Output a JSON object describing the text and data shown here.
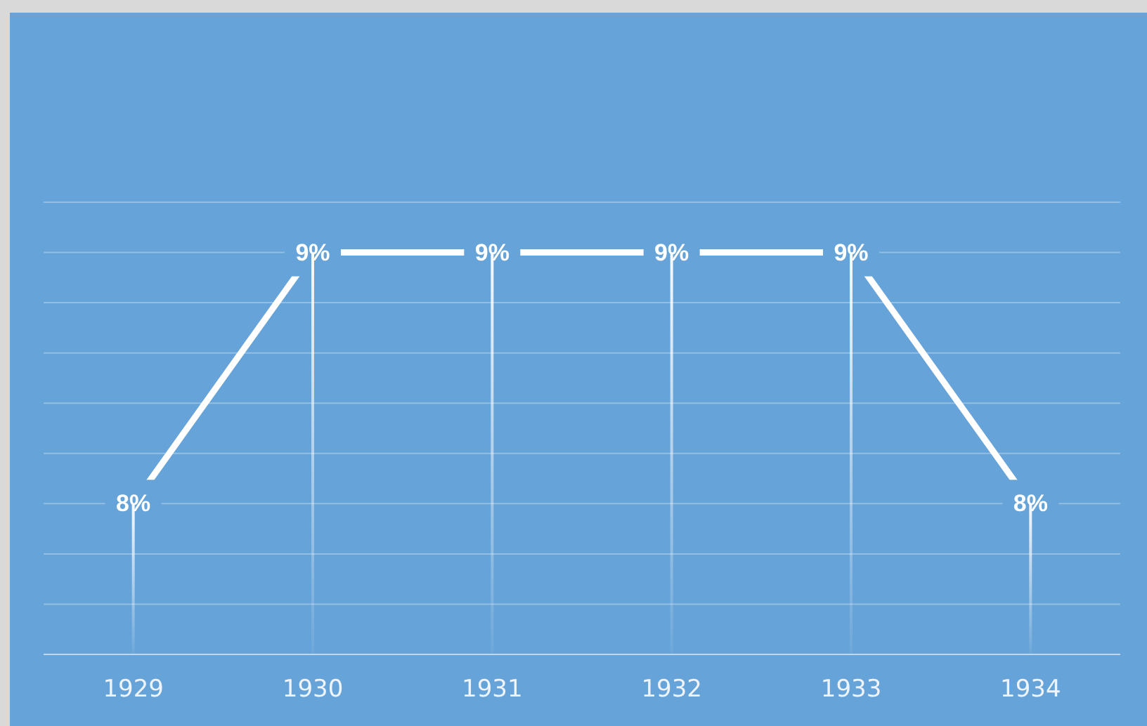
{
  "chart_data": {
    "type": "line",
    "categories": [
      "1929",
      "1930",
      "1931",
      "1932",
      "1933",
      "1934"
    ],
    "series": [
      {
        "color": "#ffffff",
        "values": [
          8,
          9,
          9,
          9,
          9,
          8
        ],
        "value_labels": [
          "8%",
          "9%",
          "9%",
          "9%",
          "9%",
          "8%"
        ]
      },
      {
        "type": "bar",
        "color": "#ffffff",
        "values": [
          8,
          9,
          9,
          9,
          9,
          8
        ]
      }
    ],
    "ylim": [
      7.4,
      9.2
    ],
    "yticks": [
      {
        "value": 7.4,
        "label": null
      },
      {
        "value": 7.6,
        "label": null
      },
      {
        "value": 7.8,
        "label": null
      },
      {
        "value": 8,
        "label": null
      },
      {
        "value": 8.2,
        "label": null
      },
      {
        "value": 8.4,
        "label": null
      },
      {
        "value": 8.6,
        "label": null
      },
      {
        "value": 8.8,
        "label": null
      },
      {
        "value": 9,
        "label": null
      },
      {
        "value": 9.2,
        "label": null
      }
    ],
    "grid": "y",
    "tick_labels": "x"
  }
}
